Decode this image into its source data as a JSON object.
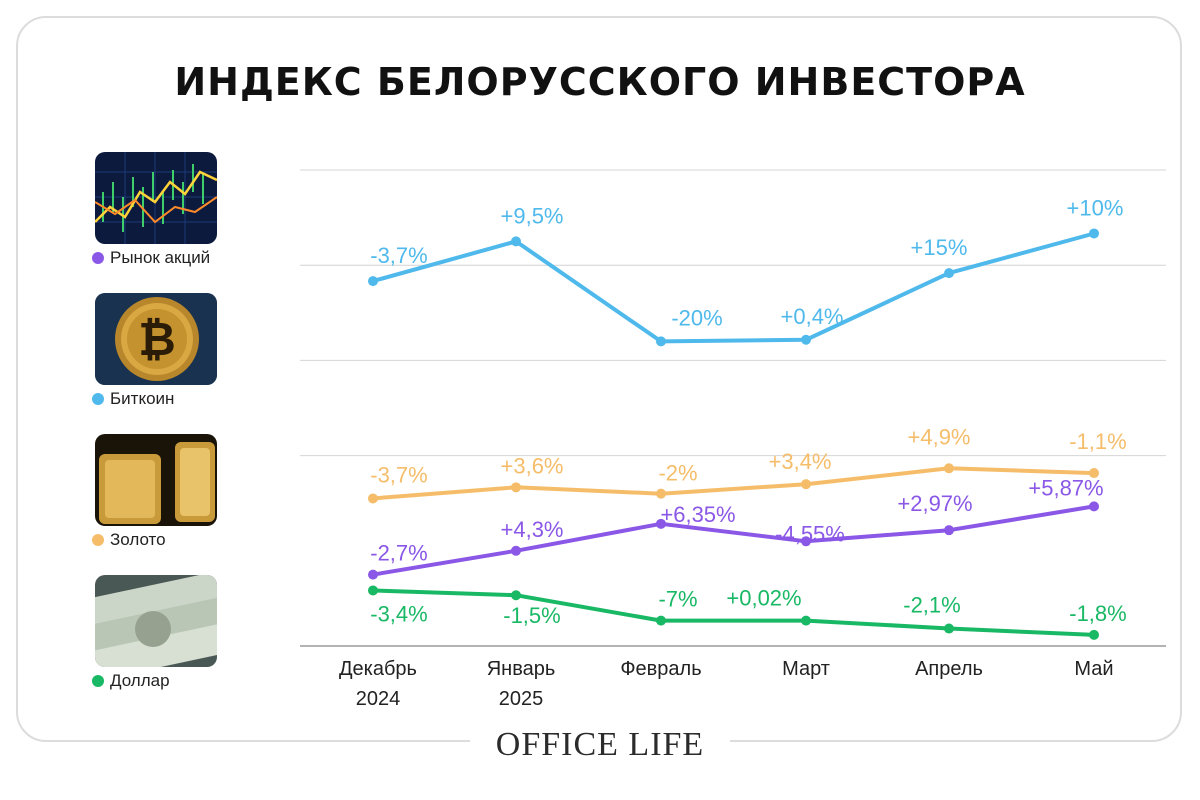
{
  "title": "ИНДЕКС БЕЛОРУССКОГО ИНВЕСТОРА",
  "logo_text": "OFFICE LIFE",
  "legend": [
    {
      "label": "Рынок акций",
      "color": "#8a57e6",
      "icon": "stock-chart-photo"
    },
    {
      "label": "Биткоин",
      "color": "#4fb9ec",
      "icon": "bitcoin-coin-photo"
    },
    {
      "label": "Золото",
      "color": "#f5bd6a",
      "icon": "gold-bars-photo"
    },
    {
      "label": "Доллар",
      "color": "#19b865",
      "icon": "dollar-bills-photo"
    }
  ],
  "chart_data": {
    "type": "line",
    "categories": [
      [
        "Декабрь",
        "2024"
      ],
      [
        "Январь",
        "2025"
      ],
      [
        "Февраль"
      ],
      [
        "Март"
      ],
      [
        "Апрель"
      ],
      [
        "Май"
      ]
    ],
    "grid": true,
    "series": [
      {
        "name": "Биткоин",
        "color": "#4fb9ec",
        "values": [
          2.3,
          2.55,
          1.92,
          1.93,
          2.35,
          2.6
        ],
        "labels": [
          "-3,7%",
          "+9,5%",
          "-20%",
          "+0,4%",
          "+15%",
          "+10%"
        ]
      },
      {
        "name": "Золото",
        "color": "#f5bd6a",
        "values": [
          0.93,
          1.0,
          0.96,
          1.02,
          1.12,
          1.09
        ],
        "labels": [
          "-3,7%",
          "+3,6%",
          "-2%",
          "+3,4%",
          "+4,9%",
          "-1,1%"
        ]
      },
      {
        "name": "Рынок акций",
        "color": "#8a57e6",
        "values": [
          0.45,
          0.6,
          0.77,
          0.66,
          0.73,
          0.88
        ],
        "labels": [
          "-2,7%",
          "+4,3%",
          "+6,35%",
          "-4,55%",
          "+2,97%",
          "+5,87%"
        ]
      },
      {
        "name": "Доллар",
        "color": "#19b865",
        "values": [
          0.35,
          0.32,
          0.16,
          0.16,
          0.11,
          0.07
        ],
        "labels": [
          "-3,4%",
          "-1,5%",
          "-7%",
          "+0,02%",
          "-2,1%",
          "-1,8%"
        ]
      }
    ]
  }
}
